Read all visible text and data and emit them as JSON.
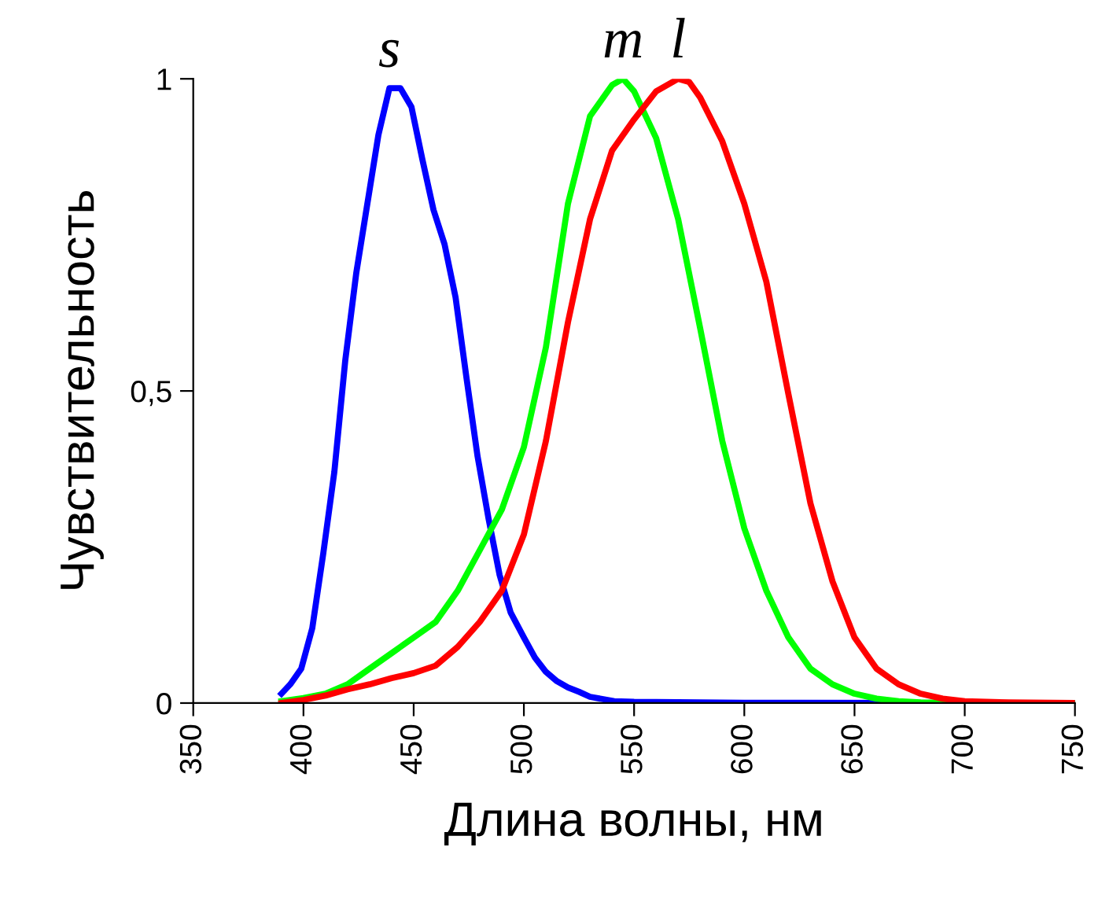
{
  "chart_data": {
    "type": "line",
    "xlabel": "Длина волны, нм",
    "ylabel": "Чувствительность",
    "xlim": [
      350,
      750
    ],
    "ylim": [
      0,
      1
    ],
    "xticks": [
      350,
      400,
      450,
      500,
      550,
      600,
      650,
      700,
      750
    ],
    "yticks": [
      0,
      {
        "value": 0.5,
        "label": "0,5"
      },
      1
    ],
    "grid": false,
    "legend": false,
    "marker": "none",
    "line_style": "solid",
    "series": [
      {
        "name": "s",
        "color": "#0000ff",
        "x": [
          390,
          394,
          399,
          404,
          409,
          414,
          419,
          424,
          429,
          434,
          439,
          444,
          449,
          454,
          459,
          464,
          469,
          474,
          479,
          484,
          489,
          494,
          500,
          505,
          510,
          515,
          520,
          525,
          530,
          541,
          550,
          600,
          750
        ],
        "values": [
          0.015,
          0.03,
          0.055,
          0.12,
          0.24,
          0.37,
          0.55,
          0.69,
          0.8,
          0.91,
          0.985,
          0.985,
          0.955,
          0.87,
          0.79,
          0.735,
          0.65,
          0.52,
          0.395,
          0.295,
          0.205,
          0.145,
          0.105,
          0.073,
          0.05,
          0.035,
          0.025,
          0.018,
          0.01,
          0.003,
          0.002,
          0.0005,
          0
        ]
      },
      {
        "name": "m",
        "color": "#00ff00",
        "x": [
          390,
          400,
          410,
          420,
          430,
          440,
          450,
          460,
          470,
          480,
          490,
          500,
          510,
          520,
          530,
          540,
          545,
          550,
          560,
          570,
          580,
          590,
          600,
          610,
          620,
          630,
          640,
          650,
          660,
          670,
          680,
          700,
          750
        ],
        "values": [
          0.003,
          0.008,
          0.015,
          0.03,
          0.055,
          0.08,
          0.105,
          0.13,
          0.18,
          0.245,
          0.31,
          0.41,
          0.57,
          0.8,
          0.94,
          0.99,
          1.0,
          0.98,
          0.905,
          0.775,
          0.6,
          0.42,
          0.28,
          0.18,
          0.105,
          0.055,
          0.03,
          0.015,
          0.007,
          0.003,
          0.001,
          0,
          0
        ]
      },
      {
        "name": "l",
        "color": "#ff0000",
        "x": [
          390,
          400,
          410,
          420,
          430,
          440,
          450,
          460,
          470,
          480,
          490,
          500,
          510,
          520,
          530,
          540,
          550,
          560,
          570,
          575,
          580,
          590,
          600,
          610,
          620,
          630,
          640,
          650,
          660,
          670,
          680,
          690,
          700,
          720,
          750
        ],
        "values": [
          0.0,
          0.005,
          0.012,
          0.022,
          0.03,
          0.04,
          0.048,
          0.06,
          0.09,
          0.13,
          0.18,
          0.27,
          0.42,
          0.61,
          0.775,
          0.885,
          0.935,
          0.98,
          1.0,
          0.995,
          0.97,
          0.9,
          0.8,
          0.675,
          0.495,
          0.32,
          0.195,
          0.105,
          0.055,
          0.03,
          0.015,
          0.007,
          0.003,
          0.001,
          0
        ]
      }
    ]
  }
}
